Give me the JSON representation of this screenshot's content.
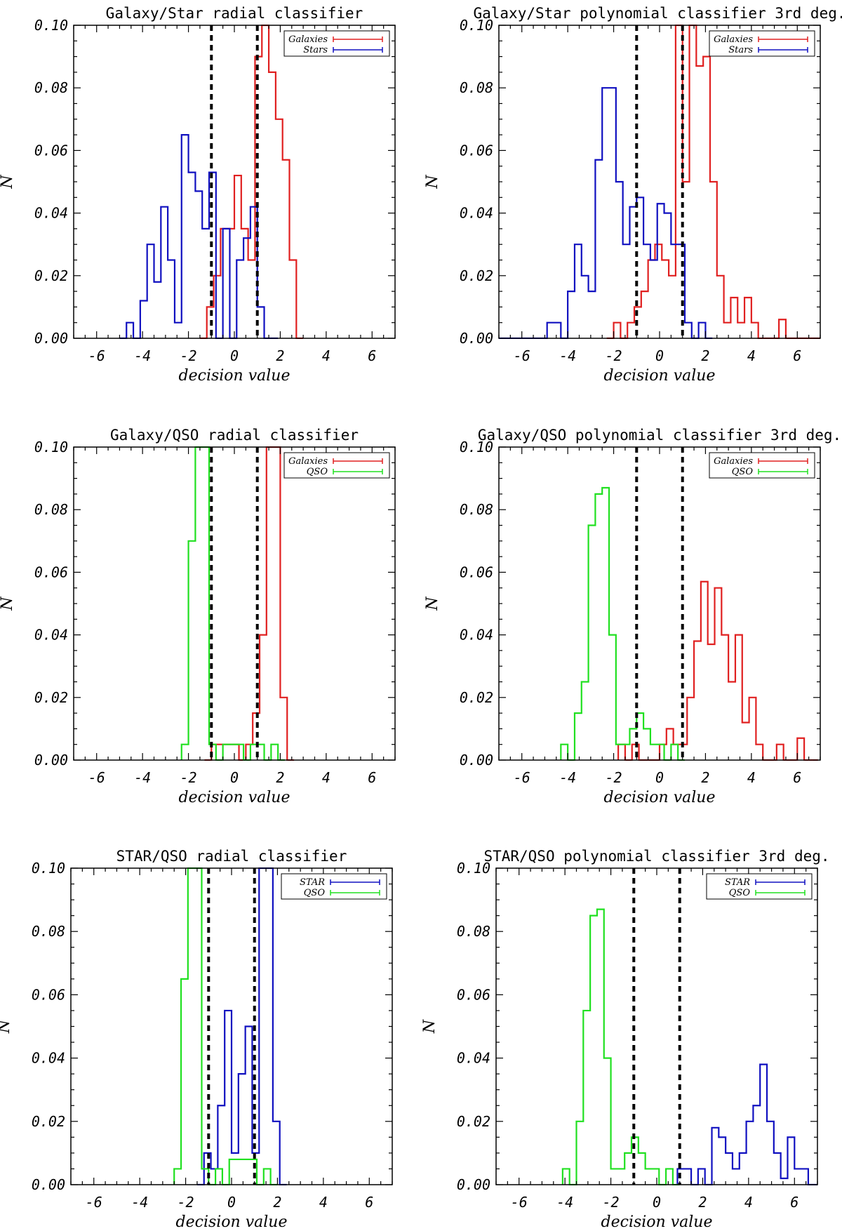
{
  "chart_data": [
    {
      "type": "histogram",
      "title": "Galaxy/Star radial classifier",
      "xlabel": "decision value",
      "ylabel": "N",
      "xlim": [
        -7,
        7
      ],
      "ylim": [
        0,
        0.1
      ],
      "xticks": [
        -6,
        -4,
        -2,
        0,
        2,
        4,
        6
      ],
      "yticks": [
        0.0,
        0.02,
        0.04,
        0.06,
        0.08,
        0.1
      ],
      "xtick_labels": [
        "-6",
        "-4",
        "-2",
        "0",
        "2",
        "4",
        "6"
      ],
      "ytick_labels": [
        "0.00",
        "0.02",
        "0.04",
        "0.06",
        "0.08",
        "0.10"
      ],
      "thresholds": [
        -1,
        1
      ],
      "legend_position": "top-right",
      "series": [
        {
          "name": "Galaxies",
          "color": "#e02020",
          "x": [
            -1.5,
            -1.2,
            -0.9,
            -0.6,
            -0.3,
            0.0,
            0.3,
            0.6,
            0.9,
            1.2,
            1.5,
            1.8,
            2.1,
            2.4,
            2.7
          ],
          "y": [
            0.0,
            0.01,
            0.02,
            0.035,
            0.035,
            0.052,
            0.035,
            0.025,
            0.09,
            0.1,
            0.085,
            0.07,
            0.057,
            0.025,
            0.0
          ]
        },
        {
          "name": "Stars",
          "color": "#1010c0",
          "x": [
            -5.0,
            -4.7,
            -4.4,
            -4.1,
            -3.8,
            -3.5,
            -3.2,
            -2.9,
            -2.6,
            -2.3,
            -2.0,
            -1.7,
            -1.4,
            -1.1,
            -0.8,
            -0.5,
            -0.2,
            0.1,
            0.4,
            0.7,
            1.0,
            1.3,
            1.6
          ],
          "y": [
            0.0,
            0.005,
            0.0,
            0.012,
            0.03,
            0.018,
            0.042,
            0.025,
            0.005,
            0.065,
            0.053,
            0.047,
            0.035,
            0.053,
            0.0,
            0.035,
            0.0,
            0.025,
            0.032,
            0.042,
            0.01,
            0.0,
            0.0
          ]
        }
      ]
    },
    {
      "type": "histogram",
      "title": "Galaxy/Star polynomial classifier 3rd deg.",
      "xlabel": "decision value",
      "ylabel": "N",
      "xlim": [
        -7,
        7
      ],
      "ylim": [
        0,
        0.1
      ],
      "xticks": [
        -6,
        -4,
        -2,
        0,
        2,
        4,
        6
      ],
      "yticks": [
        0.0,
        0.02,
        0.04,
        0.06,
        0.08,
        0.1
      ],
      "xtick_labels": [
        "-6",
        "-4",
        "-2",
        "0",
        "2",
        "4",
        "6"
      ],
      "ytick_labels": [
        "0.00",
        "0.02",
        "0.04",
        "0.06",
        "0.08",
        "0.10"
      ],
      "thresholds": [
        -1,
        1
      ],
      "legend_position": "top-right",
      "series": [
        {
          "name": "Galaxies",
          "color": "#e02020",
          "x": [
            -2.3,
            -2.0,
            -1.7,
            -1.4,
            -1.1,
            -0.8,
            -0.5,
            -0.2,
            0.1,
            0.4,
            0.7,
            1.0,
            1.3,
            1.6,
            1.9,
            2.2,
            2.5,
            2.8,
            3.1,
            3.4,
            3.7,
            4.0,
            4.3,
            4.6,
            4.9,
            5.2,
            5.5,
            5.8,
            6.1,
            6.4,
            6.7
          ],
          "y": [
            0.0,
            0.005,
            0.0,
            0.005,
            0.01,
            0.015,
            0.025,
            0.03,
            0.025,
            0.02,
            0.1,
            0.05,
            0.1,
            0.087,
            0.09,
            0.05,
            0.02,
            0.005,
            0.013,
            0.005,
            0.013,
            0.005,
            0.0,
            0.0,
            0.0,
            0.006,
            0.0,
            0.0,
            0.0,
            0.0,
            0.0
          ]
        },
        {
          "name": "Stars",
          "color": "#1010c0",
          "x": [
            -7.0,
            -6.7,
            -6.4,
            -6.1,
            -5.8,
            -5.5,
            -5.2,
            -4.9,
            -4.6,
            -4.3,
            -4.0,
            -3.7,
            -3.4,
            -3.1,
            -2.8,
            -2.5,
            -2.2,
            -1.9,
            -1.6,
            -1.3,
            -1.0,
            -0.7,
            -0.4,
            -0.1,
            0.2,
            0.5,
            0.8,
            1.1,
            1.4,
            1.7,
            2.0
          ],
          "y": [
            0.0,
            0.0,
            0.0,
            0.0,
            0.0,
            0.0,
            0.0,
            0.005,
            0.005,
            0.0,
            0.015,
            0.03,
            0.02,
            0.015,
            0.057,
            0.08,
            0.08,
            0.05,
            0.03,
            0.042,
            0.045,
            0.03,
            0.025,
            0.043,
            0.04,
            0.03,
            0.03,
            0.005,
            0.0,
            0.005,
            0.0
          ]
        }
      ]
    },
    {
      "type": "histogram",
      "title": "Galaxy/QSO radial classifier",
      "xlabel": "decision value",
      "ylabel": "N",
      "xlim": [
        -7,
        7
      ],
      "ylim": [
        0,
        0.1
      ],
      "xticks": [
        -6,
        -4,
        -2,
        0,
        2,
        4,
        6
      ],
      "yticks": [
        0.0,
        0.02,
        0.04,
        0.06,
        0.08,
        0.1
      ],
      "xtick_labels": [
        "-6",
        "-4",
        "-2",
        "0",
        "2",
        "4",
        "6"
      ],
      "ytick_labels": [
        "0.00",
        "0.02",
        "0.04",
        "0.06",
        "0.08",
        "0.10"
      ],
      "thresholds": [
        -1,
        1
      ],
      "legend_position": "top-right",
      "series": [
        {
          "name": "Galaxies",
          "color": "#e02020",
          "x": [
            -1.3,
            -1.0,
            -0.7,
            -0.4,
            -0.1,
            0.2,
            0.5,
            0.8,
            1.1,
            1.4,
            1.7,
            2.0,
            2.3
          ],
          "y": [
            0.0,
            0.005,
            0.005,
            0.005,
            0.005,
            0.0,
            0.005,
            0.015,
            0.04,
            0.1,
            0.1,
            0.02,
            0.0
          ]
        },
        {
          "name": "QSO",
          "color": "#20e020",
          "x": [
            -2.3,
            -2.0,
            -1.7,
            -1.4,
            -1.1,
            -0.8,
            -0.5,
            -0.2,
            0.1,
            0.4,
            0.7,
            1.0,
            1.3,
            1.6,
            1.9
          ],
          "y": [
            0.005,
            0.07,
            0.1,
            0.1,
            0.005,
            0.0,
            0.005,
            0.005,
            0.005,
            0.0,
            0.005,
            0.005,
            0.0,
            0.005,
            0.0
          ]
        }
      ]
    },
    {
      "type": "histogram",
      "title": "Galaxy/QSO polynomial classifier 3rd deg.",
      "xlabel": "decision value",
      "ylabel": "N",
      "xlim": [
        -7,
        7
      ],
      "ylim": [
        0,
        0.1
      ],
      "xticks": [
        -6,
        -4,
        -2,
        0,
        2,
        4,
        6
      ],
      "yticks": [
        0.0,
        0.02,
        0.04,
        0.06,
        0.08,
        0.1
      ],
      "xtick_labels": [
        "-6",
        "-4",
        "-2",
        "0",
        "2",
        "4",
        "6"
      ],
      "ytick_labels": [
        "0.00",
        "0.02",
        "0.04",
        "0.06",
        "0.08",
        "0.10"
      ],
      "thresholds": [
        -1,
        1
      ],
      "legend_position": "top-right",
      "series": [
        {
          "name": "Galaxies",
          "color": "#e02020",
          "x": [
            -1.8,
            -1.5,
            -1.2,
            -0.9,
            -0.6,
            -0.3,
            0.0,
            0.3,
            0.6,
            0.9,
            1.2,
            1.5,
            1.8,
            2.1,
            2.4,
            2.7,
            3.0,
            3.3,
            3.6,
            3.9,
            4.2,
            4.5,
            4.8,
            5.1,
            5.4,
            5.7,
            6.0,
            6.3,
            6.6
          ],
          "y": [
            0.005,
            0.0,
            0.005,
            0.0,
            0.0,
            0.0,
            0.005,
            0.01,
            0.005,
            0.005,
            0.02,
            0.038,
            0.057,
            0.037,
            0.055,
            0.04,
            0.025,
            0.04,
            0.012,
            0.02,
            0.005,
            0.0,
            0.0,
            0.005,
            0.0,
            0.0,
            0.007,
            0.0,
            0.0
          ]
        },
        {
          "name": "QSO",
          "color": "#20e020",
          "x": [
            -4.3,
            -4.0,
            -3.7,
            -3.4,
            -3.1,
            -2.8,
            -2.5,
            -2.2,
            -1.9,
            -1.6,
            -1.3,
            -1.0,
            -0.7,
            -0.4,
            -0.1,
            0.2,
            0.5,
            0.8
          ],
          "y": [
            0.005,
            0.0,
            0.015,
            0.025,
            0.075,
            0.085,
            0.087,
            0.04,
            0.005,
            0.005,
            0.01,
            0.015,
            0.01,
            0.005,
            0.005,
            0.0,
            0.005,
            0.0
          ]
        }
      ]
    },
    {
      "type": "histogram",
      "title": "STAR/QSO radial classifier",
      "xlabel": "decision value",
      "ylabel": "N",
      "xlim": [
        -7,
        7
      ],
      "ylim": [
        0,
        0.1
      ],
      "xticks": [
        -6,
        -4,
        -2,
        0,
        2,
        4,
        6
      ],
      "yticks": [
        0.0,
        0.02,
        0.04,
        0.06,
        0.08,
        0.1
      ],
      "xtick_labels": [
        "-6",
        "-4",
        "-2",
        "0",
        "2",
        "4",
        "6"
      ],
      "ytick_labels": [
        "0.00",
        "0.02",
        "0.04",
        "0.06",
        "0.08",
        "0.10"
      ],
      "thresholds": [
        -1,
        1
      ],
      "legend_position": "top-right",
      "series": [
        {
          "name": "STAR",
          "color": "#1010c0",
          "x": [
            -1.5,
            -1.2,
            -0.9,
            -0.6,
            -0.3,
            0.0,
            0.3,
            0.6,
            0.9,
            1.2,
            1.5,
            1.8,
            2.1
          ],
          "y": [
            0.0,
            0.01,
            0.005,
            0.025,
            0.055,
            0.01,
            0.035,
            0.05,
            0.01,
            0.1,
            0.1,
            0.02,
            0.0
          ]
        },
        {
          "name": "QSO",
          "color": "#20e020",
          "x": [
            -2.5,
            -2.2,
            -1.9,
            -1.6,
            -1.3,
            -1.0,
            -0.7,
            -0.4,
            -0.1,
            0.2,
            0.5,
            0.8,
            1.1,
            1.4,
            1.7
          ],
          "y": [
            0.005,
            0.065,
            0.1,
            0.1,
            0.005,
            0.0,
            0.005,
            0.0,
            0.008,
            0.008,
            0.008,
            0.008,
            0.0,
            0.005,
            0.0
          ]
        }
      ]
    },
    {
      "type": "histogram",
      "title": "STAR/QSO polynomial classifier 3rd deg.",
      "xlabel": "decision value",
      "ylabel": "N",
      "xlim": [
        -7,
        7
      ],
      "ylim": [
        0,
        0.1
      ],
      "xticks": [
        -6,
        -4,
        -2,
        0,
        2,
        4,
        6
      ],
      "yticks": [
        0.0,
        0.02,
        0.04,
        0.06,
        0.08,
        0.1
      ],
      "xtick_labels": [
        "-6",
        "-4",
        "-2",
        "0",
        "2",
        "4",
        "6"
      ],
      "ytick_labels": [
        "0.00",
        "0.02",
        "0.04",
        "0.06",
        "0.08",
        "0.10"
      ],
      "thresholds": [
        -1,
        1
      ],
      "legend_position": "top-right",
      "series": [
        {
          "name": "STAR",
          "color": "#1010c0",
          "x": [
            0.9,
            1.2,
            1.5,
            1.8,
            2.1,
            2.4,
            2.7,
            3.0,
            3.3,
            3.6,
            3.9,
            4.2,
            4.5,
            4.8,
            5.1,
            5.4,
            5.7,
            6.0,
            6.3,
            6.6,
            6.9
          ],
          "y": [
            0.005,
            0.005,
            0.0,
            0.005,
            0.0,
            0.018,
            0.015,
            0.01,
            0.005,
            0.01,
            0.02,
            0.025,
            0.038,
            0.02,
            0.01,
            0.002,
            0.015,
            0.005,
            0.005,
            0.0,
            0.0
          ]
        },
        {
          "name": "QSO",
          "color": "#20e020",
          "x": [
            -4.1,
            -3.8,
            -3.5,
            -3.2,
            -2.9,
            -2.6,
            -2.3,
            -2.0,
            -1.7,
            -1.4,
            -1.1,
            -0.8,
            -0.5,
            -0.2,
            0.1,
            0.4,
            0.7
          ],
          "y": [
            0.005,
            0.0,
            0.02,
            0.055,
            0.085,
            0.087,
            0.04,
            0.005,
            0.005,
            0.01,
            0.015,
            0.01,
            0.005,
            0.005,
            0.0,
            0.005,
            0.0
          ]
        }
      ]
    }
  ]
}
